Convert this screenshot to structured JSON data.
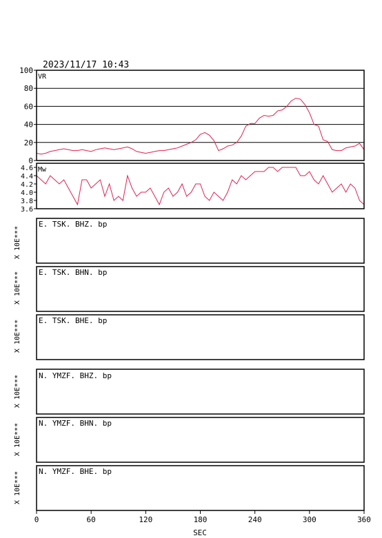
{
  "header": {
    "datetime": "2023/11/17  10:43"
  },
  "colors": {
    "trace": "#e0204f",
    "axis": "#000000"
  },
  "chart_data": [
    {
      "id": "vr",
      "type": "line",
      "panel_label": "VR",
      "ylim": [
        0,
        100
      ],
      "yticks": [
        "0",
        "20",
        "40",
        "60",
        "80",
        "100"
      ],
      "ytick_values": [
        0,
        20,
        40,
        60,
        80,
        100
      ],
      "grid": "horizontal",
      "x": [
        0,
        5,
        10,
        15,
        20,
        25,
        30,
        35,
        40,
        45,
        50,
        55,
        60,
        65,
        70,
        75,
        80,
        85,
        90,
        95,
        100,
        105,
        110,
        115,
        120,
        125,
        130,
        135,
        140,
        145,
        150,
        155,
        160,
        165,
        170,
        175,
        180,
        185,
        190,
        195,
        200,
        205,
        210,
        215,
        220,
        225,
        230,
        235,
        240,
        245,
        250,
        255,
        260,
        265,
        270,
        275,
        280,
        285,
        290,
        295,
        300,
        305,
        310,
        315,
        320,
        325,
        330,
        335,
        340,
        345,
        350,
        355,
        360
      ],
      "y": [
        8,
        7,
        8,
        10,
        11,
        12,
        13,
        12,
        11,
        11,
        12,
        11,
        10,
        12,
        13,
        14,
        13,
        12,
        13,
        14,
        15,
        13,
        10,
        9,
        8,
        9,
        10,
        11,
        11,
        12,
        13,
        14,
        16,
        18,
        20,
        23,
        29,
        31,
        28,
        22,
        11,
        13,
        16,
        17,
        20,
        27,
        38,
        41,
        41,
        47,
        50,
        49,
        50,
        55,
        56,
        60,
        66,
        69,
        68,
        62,
        53,
        40,
        38,
        23,
        21,
        12,
        11,
        11,
        14,
        15,
        16,
        19,
        12
      ]
    },
    {
      "id": "mw",
      "type": "line",
      "panel_label": "Mw",
      "ylim": [
        3.6,
        4.7
      ],
      "yticks": [
        "3.6",
        "3.8",
        "4.0",
        "4.2",
        "4.4",
        "4.6"
      ],
      "ytick_values": [
        3.6,
        3.8,
        4.0,
        4.2,
        4.4,
        4.6
      ],
      "grid": "none",
      "x": [
        0,
        5,
        10,
        15,
        20,
        25,
        30,
        35,
        40,
        45,
        50,
        55,
        60,
        65,
        70,
        75,
        80,
        85,
        90,
        95,
        100,
        105,
        110,
        115,
        120,
        125,
        130,
        135,
        140,
        145,
        150,
        155,
        160,
        165,
        170,
        175,
        180,
        185,
        190,
        195,
        200,
        205,
        210,
        215,
        220,
        225,
        230,
        235,
        240,
        245,
        250,
        255,
        260,
        265,
        270,
        275,
        280,
        285,
        290,
        295,
        300,
        305,
        310,
        315,
        320,
        325,
        330,
        335,
        340,
        345,
        350,
        355,
        360
      ],
      "y": [
        4.4,
        4.3,
        4.2,
        4.4,
        4.3,
        4.2,
        4.3,
        4.1,
        3.9,
        3.7,
        4.3,
        4.3,
        4.1,
        4.2,
        4.3,
        3.9,
        4.2,
        3.8,
        3.9,
        3.8,
        4.4,
        4.1,
        3.9,
        4.0,
        4.0,
        4.1,
        3.9,
        3.7,
        4.0,
        4.1,
        3.9,
        4.0,
        4.2,
        3.9,
        4.0,
        4.2,
        4.2,
        3.9,
        3.8,
        4.0,
        3.9,
        3.8,
        4.0,
        4.3,
        4.2,
        4.4,
        4.3,
        4.4,
        4.5,
        4.5,
        4.5,
        4.6,
        4.6,
        4.5,
        4.6,
        4.6,
        4.6,
        4.6,
        4.4,
        4.4,
        4.5,
        4.3,
        4.2,
        4.4,
        4.2,
        4.0,
        4.1,
        4.2,
        4.0,
        4.2,
        4.1,
        3.8,
        3.7
      ]
    }
  ],
  "ylabel": "X 10E***",
  "stations": [
    {
      "label": "E. TSK. BHZ. bp"
    },
    {
      "label": "E. TSK. BHN. bp"
    },
    {
      "label": "E. TSK. BHE. bp"
    },
    {
      "label": "N. YMZF. BHZ. bp"
    },
    {
      "label": "N. YMZF. BHN. bp"
    },
    {
      "label": "N. YMZF. BHE. bp"
    }
  ],
  "xaxis": {
    "ticks": [
      "0",
      "60",
      "120",
      "180",
      "240",
      "300",
      "360"
    ],
    "tick_values": [
      0,
      60,
      120,
      180,
      240,
      300,
      360
    ],
    "xlim": [
      0,
      360
    ],
    "label": "SEC"
  }
}
